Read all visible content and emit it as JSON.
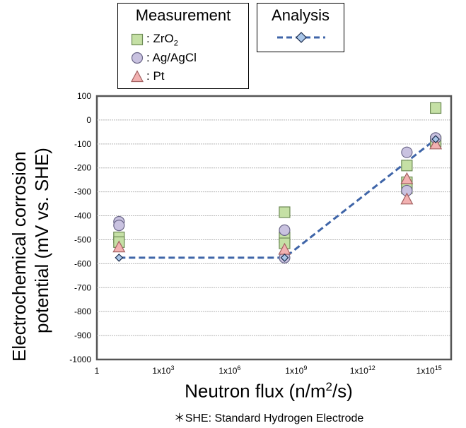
{
  "legend_measurement": {
    "title": "Measurement",
    "items": [
      {
        "label_prefix": ": ZrO",
        "label_sub": "2",
        "marker": "square",
        "fill": "#c5e0a5",
        "stroke": "#6d8a55"
      },
      {
        "label_prefix": ": Ag/AgCl",
        "label_sub": "",
        "marker": "circle",
        "fill": "#c9c2e0",
        "stroke": "#6a6688"
      },
      {
        "label_prefix": ": Pt",
        "label_sub": "",
        "marker": "triangle",
        "fill": "#f2b1b1",
        "stroke": "#a26060"
      }
    ]
  },
  "legend_analysis": {
    "title": "Analysis",
    "line_color": "#3f65a8",
    "marker_fill": "#a9c6e8"
  },
  "axis": {
    "ylabel_line1": "Electrochemical corrosion",
    "ylabel_line2": "potential  (mV vs. SHE)",
    "xlabel_prefix": "Neutron flux (n/m",
    "xlabel_sup": "2",
    "xlabel_suffix": "/s)",
    "footnote": "＊SHE: Standard Hydrogen Electrode"
  },
  "chart_data": {
    "type": "scatter",
    "x_scale": "log",
    "xlim": [
      1,
      10000000000000000
    ],
    "ylim": [
      -1000,
      100
    ],
    "x_ticks": [
      {
        "value": 1,
        "base": "1",
        "exp": ""
      },
      {
        "value": 1000,
        "base": "1x10",
        "exp": "3"
      },
      {
        "value": 1000000,
        "base": "1x10",
        "exp": "6"
      },
      {
        "value": 1000000000,
        "base": "1x10",
        "exp": "9"
      },
      {
        "value": 1000000000000,
        "base": "1x10",
        "exp": "12"
      },
      {
        "value": 1000000000000000,
        "base": "1x10",
        "exp": "15"
      }
    ],
    "y_ticks": [
      100,
      0,
      -100,
      -200,
      -300,
      -400,
      -500,
      -600,
      -700,
      -800,
      -900,
      -1000
    ],
    "grid": "horizontal",
    "series": [
      {
        "name": "ZrO2",
        "marker": "square",
        "points": [
          [
            10,
            -490
          ],
          [
            10,
            -510
          ],
          [
            300000000,
            -385
          ],
          [
            300000000,
            -490
          ],
          [
            300000000,
            -515
          ],
          [
            100000000000000,
            -190
          ],
          [
            100000000000000,
            -260
          ],
          [
            100000000000000,
            -285
          ],
          [
            2000000000000000,
            50
          ],
          [
            2000000000000000,
            -90
          ]
        ]
      },
      {
        "name": "Ag/AgCl",
        "marker": "circle",
        "points": [
          [
            10,
            -425
          ],
          [
            10,
            -440
          ],
          [
            300000000,
            -460
          ],
          [
            300000000,
            -575
          ],
          [
            100000000000000,
            -135
          ],
          [
            100000000000000,
            -295
          ],
          [
            2000000000000000,
            -75
          ]
        ]
      },
      {
        "name": "Pt",
        "marker": "triangle",
        "points": [
          [
            10,
            -530
          ],
          [
            300000000,
            -540
          ],
          [
            100000000000000,
            -330
          ],
          [
            100000000000000,
            -245
          ],
          [
            2000000000000000,
            -100
          ]
        ]
      },
      {
        "name": "Analysis",
        "marker": "diamond",
        "line": "dashed",
        "points": [
          [
            10,
            -575
          ],
          [
            300000000,
            -575
          ],
          [
            2000000000000000,
            -80
          ]
        ]
      }
    ]
  }
}
